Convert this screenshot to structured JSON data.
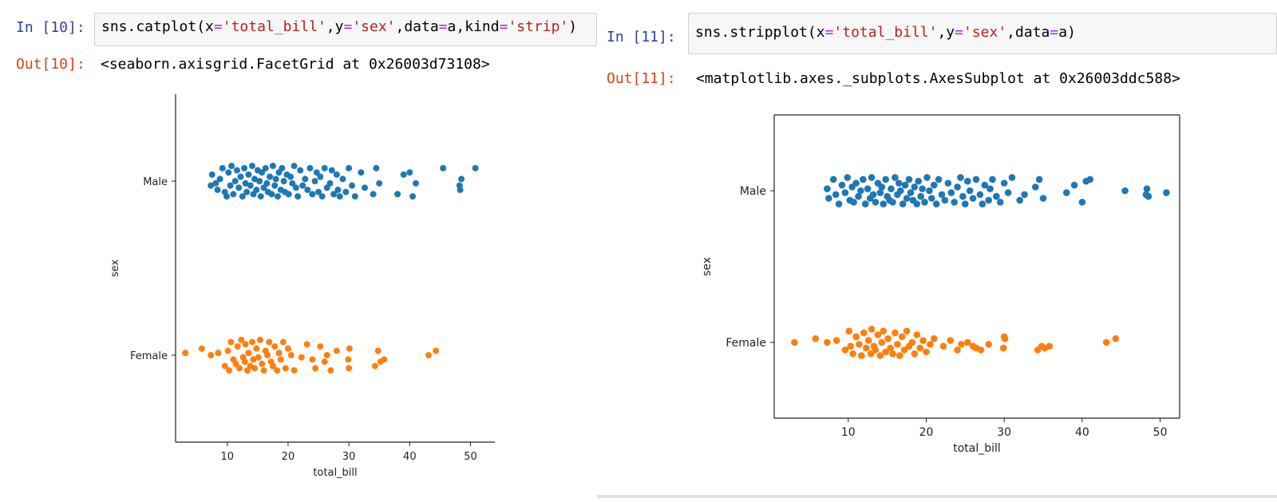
{
  "cells": [
    {
      "in_prompt": "In [10]:",
      "code": {
        "fn": "sns.catplot(",
        "x_kw": "x",
        "eq1": "=",
        "x_val": "'total_bill'",
        "c1": ",",
        "y_kw": "y",
        "eq2": "=",
        "y_val": "'sex'",
        "c2": ",",
        "data_kw": "data",
        "eq3": "=",
        "data_val": "a",
        "c3": ",",
        "kind_kw": "kind",
        "eq4": "=",
        "kind_val": "'strip'",
        "close": ")"
      },
      "out_prompt": "Out[10]:",
      "output": "<seaborn.axisgrid.FacetGrid at 0x26003d73108>"
    },
    {
      "in_prompt": "In [11]:",
      "code": {
        "fn": "sns.stripplot(",
        "x_kw": "x",
        "eq1": "=",
        "x_val": "'total_bill'",
        "c1": ",",
        "y_kw": "y",
        "eq2": "=",
        "y_val": "'sex'",
        "c2": ",",
        "data_kw": "data",
        "eq3": "=",
        "data_val": "a",
        "close": ")"
      },
      "out_prompt": "Out[11]:",
      "output": "<matplotlib.axes._subplots.AxesSubplot at 0x26003ddc588>"
    }
  ],
  "colors": {
    "male": "#1f77b4",
    "female": "#ff7f0e"
  },
  "chart_data": [
    {
      "type": "scatter",
      "style": "catplot-strip (no top/right spines)",
      "xlabel": "total_bill",
      "ylabel": "sex",
      "xlim": [
        1.5,
        54
      ],
      "xticks": [
        10,
        20,
        30,
        40,
        50
      ],
      "categories": [
        "Male",
        "Female"
      ],
      "series": [
        {
          "name": "Male",
          "x": [
            7.3,
            7.5,
            8.1,
            8.4,
            8.8,
            9.2,
            9.6,
            9.9,
            10.2,
            10.5,
            10.7,
            11.0,
            11.3,
            11.6,
            11.9,
            12.2,
            12.5,
            12.8,
            13.0,
            13.2,
            13.5,
            13.8,
            14.1,
            14.3,
            14.5,
            14.8,
            15.0,
            15.3,
            15.5,
            15.7,
            16.0,
            16.3,
            16.5,
            16.7,
            17.0,
            17.3,
            17.5,
            17.8,
            18.0,
            18.3,
            18.5,
            18.8,
            19.0,
            19.3,
            19.5,
            19.8,
            20.1,
            20.4,
            20.7,
            21.0,
            21.3,
            21.6,
            22.0,
            22.4,
            22.8,
            23.2,
            23.6,
            24.0,
            24.4,
            24.7,
            25.0,
            25.3,
            25.6,
            26.0,
            26.4,
            26.9,
            27.2,
            27.5,
            28.0,
            28.2,
            28.5,
            29.0,
            29.5,
            30.0,
            30.5,
            31.0,
            32.0,
            32.6,
            34.0,
            34.5,
            35.0,
            38.0,
            39.0,
            40.0,
            40.5,
            41.0,
            45.5,
            48.2,
            48.3,
            48.5,
            50.8
          ],
          "jitter": [
            0.1,
            -0.15,
            0.05,
            0.2,
            -0.05,
            -0.3,
            0.25,
            0.35,
            -0.2,
            0.1,
            -0.35,
            0.3,
            0.0,
            -0.25,
            0.15,
            -0.1,
            0.35,
            -0.3,
            0.05,
            0.25,
            -0.15,
            0.1,
            -0.35,
            0.3,
            -0.05,
            0.2,
            -0.25,
            0.0,
            0.35,
            -0.2,
            0.15,
            -0.3,
            0.05,
            0.25,
            -0.1,
            0.3,
            -0.35,
            0.1,
            -0.05,
            0.35,
            -0.2,
            0.2,
            -0.3,
            0.0,
            0.25,
            -0.15,
            0.3,
            -0.1,
            0.05,
            -0.35,
            0.15,
            0.35,
            -0.25,
            0.1,
            -0.05,
            0.2,
            -0.3,
            0.3,
            0.0,
            -0.2,
            0.25,
            -0.1,
            0.35,
            -0.3,
            0.15,
            0.05,
            -0.25,
            0.3,
            -0.15,
            0.2,
            0.35,
            -0.05,
            0.25,
            -0.3,
            0.1,
            0.35,
            -0.2,
            0.15,
            0.3,
            -0.3,
            0.05,
            0.3,
            -0.15,
            -0.2,
            0.35,
            0.05,
            -0.3,
            0.1,
            0.2,
            -0.05,
            -0.3
          ]
        },
        {
          "name": "Female",
          "x": [
            3.1,
            5.8,
            7.3,
            8.5,
            9.6,
            10.1,
            10.3,
            10.6,
            11.0,
            11.4,
            11.7,
            12.0,
            12.3,
            12.6,
            12.9,
            13.0,
            13.3,
            13.5,
            13.8,
            14.1,
            14.3,
            14.5,
            14.8,
            15.1,
            15.4,
            15.7,
            16.0,
            16.3,
            16.6,
            16.9,
            17.2,
            17.5,
            17.8,
            18.2,
            18.5,
            18.8,
            19.2,
            19.6,
            20.0,
            20.5,
            21.0,
            22.2,
            23.1,
            24.0,
            24.5,
            25.3,
            26.0,
            26.4,
            27.0,
            28.0,
            29.9,
            30.0,
            30.1,
            34.3,
            34.8,
            35.2,
            35.8,
            43.1,
            44.3
          ],
          "jitter": [
            -0.05,
            -0.15,
            0.0,
            -0.05,
            0.25,
            -0.1,
            0.35,
            -0.3,
            0.1,
            0.2,
            -0.2,
            0.3,
            -0.35,
            0.05,
            0.15,
            -0.25,
            0.35,
            -0.05,
            0.25,
            -0.3,
            0.1,
            0.3,
            -0.15,
            0.05,
            -0.35,
            0.2,
            0.35,
            -0.1,
            0.0,
            -0.3,
            0.15,
            0.25,
            -0.2,
            0.35,
            -0.05,
            0.1,
            -0.3,
            0.3,
            -0.15,
            0.0,
            0.35,
            0.05,
            -0.25,
            0.1,
            0.3,
            -0.2,
            0.15,
            0.0,
            0.35,
            -0.1,
            0.1,
            0.3,
            -0.15,
            0.25,
            -0.1,
            0.15,
            0.1,
            0.0,
            -0.1
          ]
        }
      ]
    },
    {
      "type": "scatter",
      "style": "stripplot (boxed axes)",
      "xlabel": "total_bill",
      "ylabel": "sex",
      "xlim": [
        0.5,
        52.5
      ],
      "xticks": [
        10,
        20,
        30,
        40,
        50
      ],
      "categories": [
        "Male",
        "Female"
      ],
      "series": [
        {
          "name": "Male",
          "x": [
            7.3,
            7.5,
            8.1,
            8.4,
            8.8,
            9.2,
            9.6,
            9.9,
            10.2,
            10.5,
            10.7,
            11.0,
            11.3,
            11.6,
            11.9,
            12.2,
            12.5,
            12.8,
            13.0,
            13.2,
            13.5,
            13.8,
            14.1,
            14.3,
            14.5,
            14.8,
            15.0,
            15.3,
            15.5,
            15.7,
            16.0,
            16.3,
            16.5,
            16.7,
            17.0,
            17.3,
            17.5,
            17.8,
            18.0,
            18.3,
            18.5,
            18.8,
            19.0,
            19.3,
            19.5,
            19.8,
            20.1,
            20.4,
            20.7,
            21.0,
            21.3,
            21.6,
            22.0,
            22.4,
            22.8,
            23.2,
            23.6,
            24.0,
            24.4,
            24.7,
            25.0,
            25.3,
            25.6,
            26.0,
            26.4,
            26.9,
            27.2,
            27.5,
            28.0,
            28.2,
            28.5,
            29.0,
            29.5,
            30.0,
            30.5,
            31.0,
            32.0,
            32.6,
            34.0,
            34.5,
            35.0,
            38.0,
            39.0,
            40.0,
            40.5,
            41.0,
            45.5,
            48.2,
            48.3,
            48.5,
            50.8
          ],
          "jitter": [
            -0.05,
            0.2,
            -0.3,
            0.1,
            0.35,
            -0.15,
            0.05,
            -0.35,
            0.25,
            -0.1,
            0.3,
            -0.2,
            0.15,
            0.0,
            -0.3,
            0.35,
            -0.05,
            0.2,
            -0.35,
            0.1,
            0.3,
            -0.2,
            0.05,
            -0.1,
            0.35,
            -0.3,
            0.15,
            0.25,
            -0.05,
            0.3,
            -0.35,
            0.1,
            -0.2,
            0.0,
            0.35,
            -0.15,
            0.2,
            -0.3,
            0.05,
            0.25,
            -0.1,
            0.35,
            -0.25,
            0.15,
            -0.05,
            0.3,
            -0.35,
            0.0,
            0.2,
            -0.15,
            0.35,
            -0.3,
            0.1,
            0.25,
            -0.2,
            0.05,
            0.3,
            -0.1,
            -0.35,
            0.15,
            0.35,
            -0.25,
            0.0,
            0.2,
            -0.3,
            0.1,
            0.35,
            -0.15,
            0.25,
            -0.05,
            -0.3,
            0.15,
            0.3,
            -0.2,
            0.05,
            -0.35,
            0.25,
            0.1,
            -0.1,
            -0.3,
            0.2,
            0.05,
            -0.15,
            0.3,
            -0.25,
            -0.3,
            0.0,
            0.1,
            -0.05,
            0.15,
            0.05
          ]
        },
        {
          "name": "Female",
          "x": [
            3.1,
            5.8,
            7.3,
            8.5,
            9.6,
            10.1,
            10.3,
            10.6,
            11.0,
            11.4,
            11.7,
            12.0,
            12.3,
            12.6,
            12.9,
            13.0,
            13.3,
            13.5,
            13.8,
            14.1,
            14.3,
            14.5,
            14.8,
            15.1,
            15.4,
            15.7,
            16.0,
            16.3,
            16.6,
            16.9,
            17.2,
            17.5,
            17.8,
            18.2,
            18.5,
            18.8,
            19.2,
            19.6,
            20.0,
            20.5,
            21.0,
            22.2,
            23.1,
            24.0,
            24.5,
            25.3,
            26.0,
            26.4,
            27.0,
            28.0,
            29.9,
            30.0,
            30.1,
            34.3,
            34.8,
            35.2,
            35.8,
            43.1,
            44.3
          ],
          "jitter": [
            0.0,
            -0.1,
            0.0,
            -0.05,
            0.2,
            -0.3,
            0.1,
            0.3,
            -0.15,
            0.05,
            0.35,
            -0.25,
            0.15,
            -0.05,
            0.3,
            -0.35,
            0.1,
            0.2,
            -0.2,
            0.35,
            0.0,
            -0.3,
            0.25,
            -0.1,
            0.15,
            0.3,
            -0.25,
            0.05,
            0.35,
            -0.15,
            0.2,
            -0.3,
            0.1,
            0.0,
            0.3,
            -0.2,
            0.15,
            -0.05,
            0.25,
            0.05,
            -0.1,
            0.1,
            -0.05,
            0.2,
            0.05,
            0.0,
            0.1,
            0.15,
            0.2,
            0.05,
            0.15,
            -0.15,
            -0.1,
            0.2,
            0.1,
            0.15,
            0.1,
            0.0,
            -0.1
          ]
        }
      ]
    }
  ]
}
